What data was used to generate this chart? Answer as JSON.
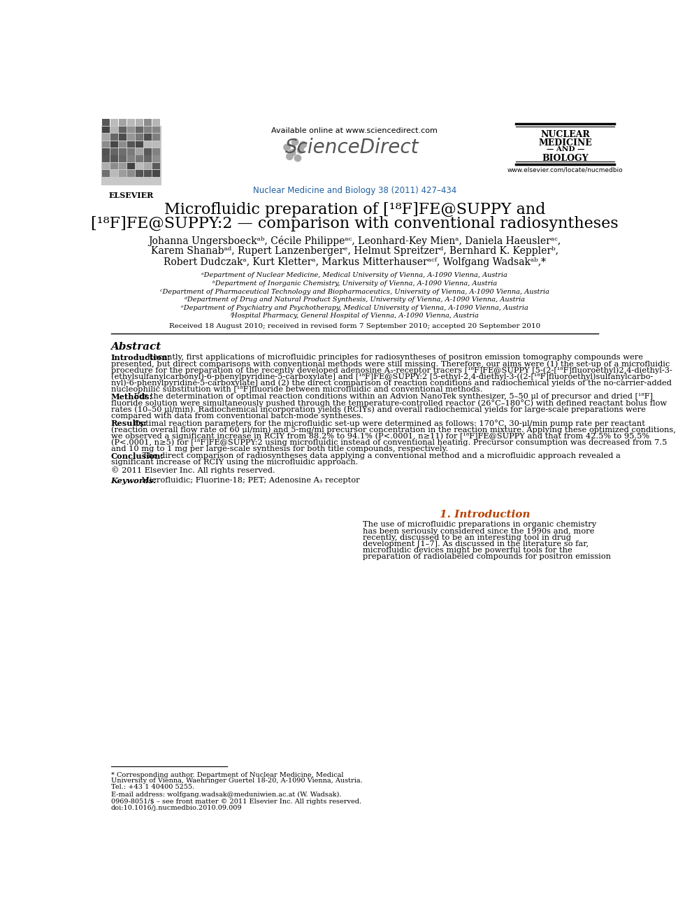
{
  "bg_color": "#ffffff",
  "available_text": "Available online at www.sciencedirect.com",
  "journal_line": "Nuclear Medicine and Biology 38 (2011) 427–434",
  "journal_color": "#2060a0",
  "website": "www.elsevier.com/locate/nucmedbio",
  "journal_name_lines": [
    "NUCLEAR",
    "MEDICINE",
    "— AND —",
    "BIOLOGY"
  ],
  "title_line1": "Microfluidic preparation of [¹⁸F]FE@SUPPY and",
  "title_line2": "[¹⁸F]FE@SUPPY:2 — comparison with conventional radiosyntheses",
  "author_lines": [
    "Johanna Ungersboeckᵃᵇ, Cécile Philippeᵃᶜ, Leonhard-Key Mienᵃ, Daniela Haeuslerᵃᶜ,",
    "Karem Shanabᵃᵈ, Rupert Lanzenbergerᵉ, Helmut Spreitzerᵈ, Bernhard K. Kepplerᵇ,",
    "Robert Dudczakᵃ, Kurt Kletterᵃ, Markus Mitterhauserᵃᶜᶠ, Wolfgang Wadsakᵃᵇ,*"
  ],
  "affiliations": [
    "ᵃDepartment of Nuclear Medicine, Medical University of Vienna, A-1090 Vienna, Austria",
    "ᵇDepartment of Inorganic Chemistry, University of Vienna, A-1090 Vienna, Austria",
    "ᶜDepartment of Pharmaceutical Technology and Biopharmaceutics, University of Vienna, A-1090 Vienna, Austria",
    "ᵈDepartment of Drug and Natural Product Synthesis, University of Vienna, A-1090 Vienna, Austria",
    "ᵉDepartment of Psychiatry and Psychotherapy, Medical University of Vienna, A-1090 Vienna, Austria",
    "ᶠHospital Pharmacy, General Hospital of Vienna, A-1090 Vienna, Austria"
  ],
  "received": "Received 18 August 2010; received in revised form 7 September 2010; accepted 20 September 2010",
  "abstract_title": "Abstract",
  "abstract_paragraphs": [
    {
      "label": "Introduction:",
      "lines": [
        "Recently, first applications of microfluidic principles for radiosyntheses of positron emission tomography compounds were",
        "presented, but direct comparisons with conventional methods were still missing. Therefore, our aims were (1) the set-up of a microfluidic",
        "procedure for the preparation of the recently developed adenosine A₃-receptor tracers [¹⁸F]FE@SUPPY [5-(2-[¹⁸F]fluoroethyl)2,4-diethyl-3-",
        "(ethylsulfanylcarbonyl)-6-phenylpyridine-5-carboxylate] and [¹⁸F]FE@SUPPY:2 [5-ethyl-2,4-diethyl-3-((2-[¹⁸F]fluoroethyl)sulfanylcarbo-",
        "nyl)-6-phenylpyridine-5-carboxylate] and (2) the direct comparison of reaction conditions and radiochemical yields of the no-carrier-added",
        "nucleophilic substitution with [¹⁸F]fluoride between microfluidic and conventional methods."
      ]
    },
    {
      "label": "Methods:",
      "lines": [
        "For the determination of optimal reaction conditions within an Advion NanoTek synthesizer, 5–50 μl of precursor and dried [¹⁸F]",
        "fluoride solution were simultaneously pushed through the temperature-controlled reactor (26°C–180°C) with defined reactant bolus flow",
        "rates (10–50 μl/min). Radiochemical incorporation yields (RCIYs) and overall radiochemical yields for large-scale preparations were",
        "compared with data from conventional batch-mode syntheses."
      ]
    },
    {
      "label": "Results:",
      "lines": [
        "Optimal reaction parameters for the microfluidic set-up were determined as follows: 170°C, 30-μl/min pump rate per reactant",
        "(reaction overall flow rate of 60 μl/min) and 5-mg/ml precursor concentration in the reaction mixture. Applying these optimized conditions,",
        "we observed a significant increase in RCIY from 88.2% to 94.1% (P<.0001, n≥11) for [¹⁸F]FE@SUPPY and that from 42.5% to 95.5%",
        "(P<.0001, n≥5) for [¹⁸F]FE@SUPPY:2 using microfluidic instead of conventional heating. Precursor consumption was decreased from 7.5",
        "and 10 mg to 1 mg per large-scale synthesis for both title compounds, respectively."
      ]
    },
    {
      "label": "Conclusion:",
      "lines": [
        "The direct comparison of radiosyntheses data applying a conventional method and a microfluidic approach revealed a",
        "significant increase of RCIY using the microfluidic approach."
      ]
    }
  ],
  "copyright": "© 2011 Elsevier Inc. All rights reserved.",
  "keywords_label": "Keywords:",
  "keywords": "  Microfluidic; Fluorine-18; PET; Adenosine A₃ receptor",
  "intro_heading": "1. Introduction",
  "intro_lines": [
    "The use of microfluidic preparations in organic chemistry",
    "has been seriously considered since the 1990s and, more",
    "recently, discussed to be an interesting tool in drug",
    "development [1–7]. As discussed in the literature so far,",
    "microfluidic devices might be powerful tools for the",
    "preparation of radiolabeled compounds for positron emission"
  ],
  "footnote_lines": [
    "* Corresponding author. Department of Nuclear Medicine, Medical",
    "University of Vienna, Waehringer Guertel 18-20, A-1090 Vienna, Austria.",
    "Tel.: +43 1 40400 5255."
  ],
  "footnote_email": "E-mail address: wolfgang.wadsak@meduniwien.ac.at (W. Wadsak).",
  "footnote_issn": "0969-8051/$ – see front matter © 2011 Elsevier Inc. All rights reserved.",
  "footnote_doi": "doi:10.1016/j.nucmedbio.2010.09.009"
}
